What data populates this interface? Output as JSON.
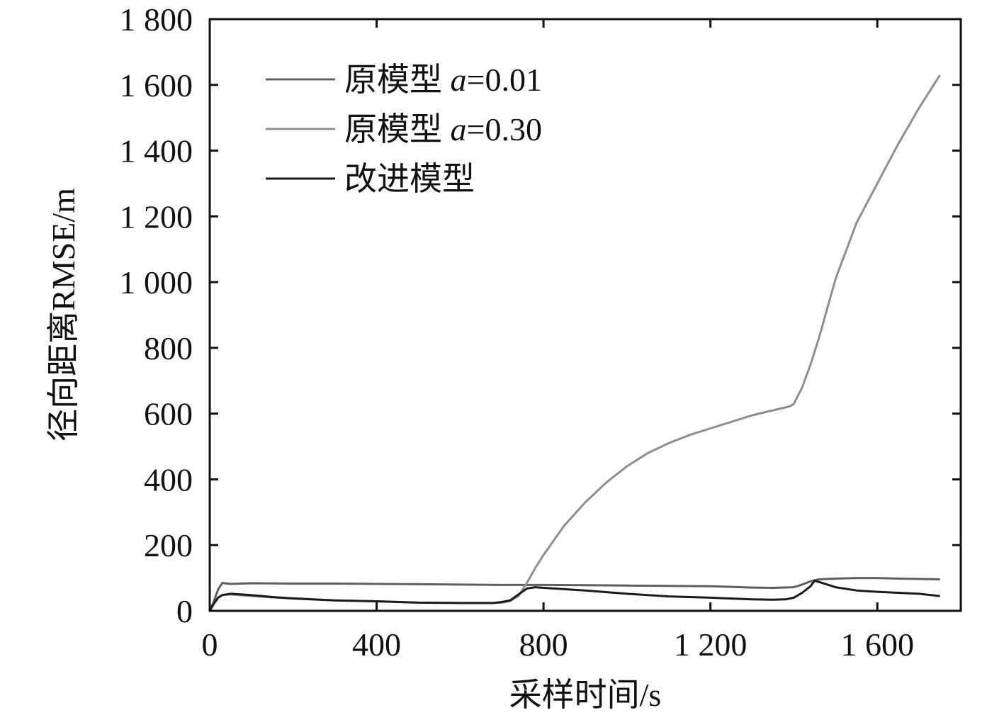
{
  "chart_data": {
    "type": "line",
    "xlabel": "采样时间/s",
    "ylabel": "径向距离RMSE/m",
    "xlim": [
      0,
      1800
    ],
    "ylim": [
      0,
      1800
    ],
    "xticks": [
      0,
      400,
      800,
      1200,
      1600
    ],
    "xtick_labels": [
      "0",
      "400",
      "800",
      "1 200",
      "1 600"
    ],
    "yticks": [
      0,
      200,
      400,
      600,
      800,
      1000,
      1200,
      1400,
      1600,
      1800
    ],
    "ytick_labels": [
      "0",
      "200",
      "400",
      "600",
      "800",
      "1 000",
      "1 200",
      "1 400",
      "1 600",
      "1 800"
    ],
    "grid": false,
    "legend_position": "top-left",
    "series": [
      {
        "name": "原模型 a=0.01",
        "legend_text": "原模型 ",
        "legend_italic": "a",
        "legend_suffix": "=0.01",
        "color": "#5f5f5f",
        "x": [
          0,
          10,
          20,
          30,
          50,
          100,
          200,
          300,
          400,
          500,
          600,
          700,
          800,
          900,
          1000,
          1100,
          1200,
          1250,
          1300,
          1350,
          1400,
          1420,
          1440,
          1460,
          1500,
          1550,
          1600,
          1650,
          1700,
          1750
        ],
        "y": [
          0,
          30,
          65,
          85,
          82,
          84,
          83,
          83,
          82,
          81,
          80,
          79,
          79,
          78,
          77,
          76,
          75,
          73,
          71,
          70,
          72,
          80,
          90,
          96,
          98,
          100,
          100,
          98,
          97,
          96
        ]
      },
      {
        "name": "原模型 a=0.30",
        "legend_text": "原模型 ",
        "legend_italic": "a",
        "legend_suffix": "=0.30",
        "color": "#8e8e8e",
        "x": [
          0,
          10,
          20,
          30,
          50,
          100,
          200,
          300,
          400,
          500,
          600,
          680,
          700,
          720,
          740,
          760,
          780,
          800,
          850,
          900,
          950,
          1000,
          1050,
          1100,
          1150,
          1200,
          1250,
          1300,
          1350,
          1390,
          1400,
          1420,
          1440,
          1460,
          1480,
          1500,
          1550,
          1600,
          1650,
          1700,
          1740,
          1750
        ],
        "y": [
          0,
          22,
          40,
          48,
          50,
          45,
          37,
          32,
          29,
          25,
          24,
          24,
          25,
          30,
          45,
          85,
          130,
          170,
          260,
          330,
          390,
          440,
          480,
          510,
          535,
          555,
          575,
          595,
          610,
          622,
          630,
          680,
          750,
          830,
          920,
          1010,
          1180,
          1300,
          1420,
          1530,
          1610,
          1630
        ]
      },
      {
        "name": "改进模型",
        "legend_text": "改进模型",
        "legend_italic": "",
        "legend_suffix": "",
        "color": "#1a1a1a",
        "x": [
          0,
          10,
          20,
          30,
          50,
          100,
          150,
          200,
          300,
          400,
          500,
          600,
          680,
          700,
          720,
          740,
          760,
          780,
          800,
          900,
          1000,
          1100,
          1200,
          1300,
          1350,
          1380,
          1400,
          1420,
          1440,
          1450,
          1460,
          1500,
          1550,
          1600,
          1650,
          1700,
          1750
        ],
        "y": [
          0,
          22,
          40,
          48,
          52,
          48,
          42,
          38,
          32,
          29,
          25,
          24,
          24,
          27,
          32,
          50,
          68,
          72,
          70,
          62,
          52,
          44,
          40,
          35,
          34,
          35,
          40,
          55,
          75,
          92,
          88,
          72,
          62,
          58,
          55,
          52,
          45
        ]
      }
    ]
  }
}
